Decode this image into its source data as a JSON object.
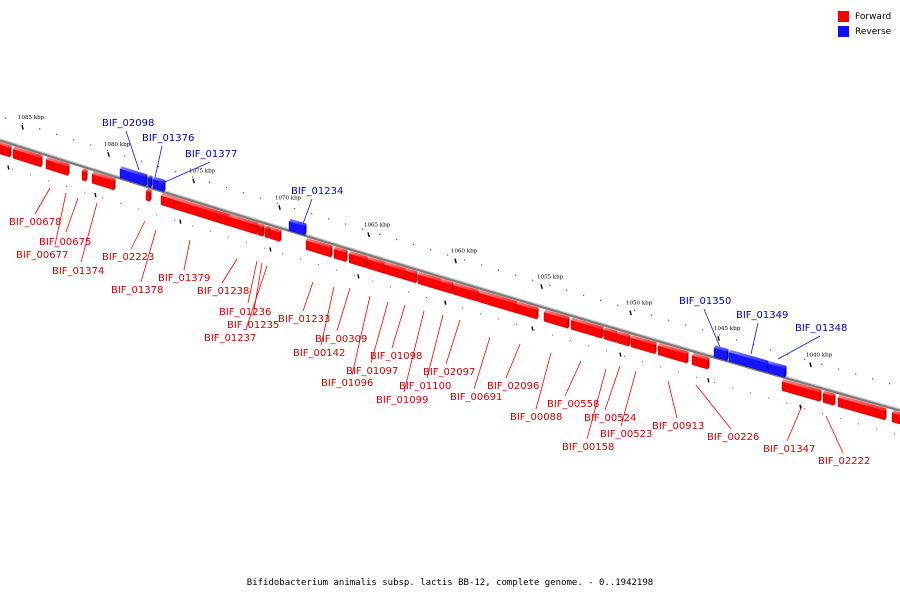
{
  "legend": {
    "forward_label": "Forward",
    "reverse_label": "Reverse",
    "forward_color": "#ff0000",
    "reverse_color": "#1010ff"
  },
  "caption": "Bifidobacterium animalis subsp. lactis BB-12, complete genome. - 0..1942198",
  "scale_labels": [
    "1085 kbp",
    "1080 kbp",
    "1075 kbp",
    "1070 kbp",
    "1065 kbp",
    "1060 kbp",
    "1055 kbp",
    "1050 kbp",
    "1045 kbp",
    "1040 kbp"
  ],
  "forward_genes": [
    "BIF_00678",
    "BIF_00675",
    "BIF_00677",
    "BIF_01374",
    "BIF_02223",
    "BIF_01378",
    "BIF_01379",
    "BIF_01238",
    "BIF_01236",
    "BIF_01235",
    "BIF_01237",
    "BIF_01233",
    "BIF_00309",
    "BIF_00142",
    "BIF_01098",
    "BIF_01097",
    "BIF_01096",
    "BIF_02097",
    "BIF_01100",
    "BIF_01099",
    "BIF_00691",
    "BIF_02096",
    "BIF_00088",
    "BIF_00558",
    "BIF_00524",
    "BIF_00523",
    "BIF_00158",
    "BIF_00913",
    "BIF_00226",
    "BIF_01347",
    "BIF_02222"
  ],
  "reverse_genes": [
    "BIF_02098",
    "BIF_01376",
    "BIF_01377",
    "BIF_01234",
    "BIF_01350",
    "BIF_01349",
    "BIF_01348"
  ]
}
